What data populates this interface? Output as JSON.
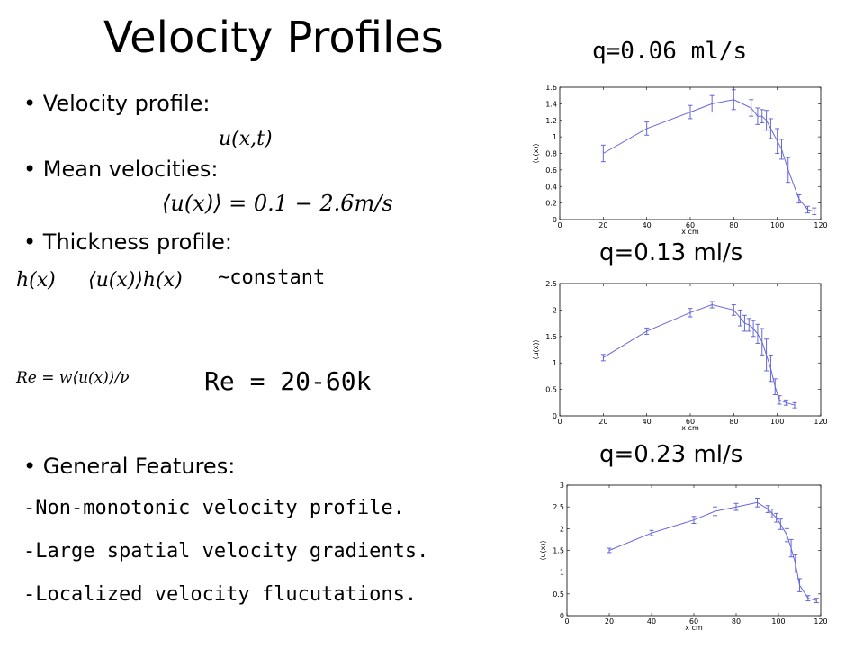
{
  "slide": {
    "title": "Velocity Profiles",
    "bullets": {
      "velocity_profile": "• Velocity profile:",
      "velocity_profile_eq": "u(x,t)",
      "mean_velocities": "• Mean velocities:",
      "mean_velocities_eq": "⟨u(x)⟩ = 0.1 − 2.6m/s",
      "thickness_profile": "• Thickness profile:",
      "thickness_eq_left": "h(x)",
      "thickness_eq_right": "⟨u(x)⟩h(x)",
      "thickness_constant": "~constant",
      "reynolds_eq": "Re = w⟨u(x)⟩/ν",
      "reynolds_value": "Re = 20-60k",
      "general_features": "• General Features:",
      "features": [
        "-Non-monotonic velocity profile.",
        "-Large spatial velocity gradients.",
        "-Localized velocity flucutations."
      ]
    }
  },
  "chart_data": [
    {
      "type": "line",
      "title": "q=0.06 ml/s",
      "xlabel": "x cm",
      "ylabel": "⟨u(x)⟩",
      "xlim": [
        0,
        120
      ],
      "ylim": [
        0,
        1.6
      ],
      "xticks": [
        "0",
        "20",
        "40",
        "60",
        "80",
        "100",
        "120"
      ],
      "yticks": [
        "0",
        "0.2",
        "0.4",
        "0.6",
        "0.8",
        "1",
        "1.2",
        "1.4",
        "1.6"
      ],
      "color": "#6666dd",
      "x": [
        20,
        40,
        60,
        70,
        80,
        88,
        91,
        93,
        95,
        97,
        100,
        102,
        105,
        110,
        114,
        117
      ],
      "y": [
        0.8,
        1.1,
        1.3,
        1.4,
        1.45,
        1.35,
        1.25,
        1.25,
        1.2,
        1.1,
        0.95,
        0.85,
        0.6,
        0.25,
        0.12,
        0.1
      ],
      "err": [
        0.1,
        0.08,
        0.08,
        0.1,
        0.12,
        0.1,
        0.1,
        0.08,
        0.12,
        0.12,
        0.15,
        0.12,
        0.15,
        0.05,
        0.04,
        0.04
      ]
    },
    {
      "type": "line",
      "title": "q=0.13 ml/s",
      "xlabel": "x cm",
      "ylabel": "⟨u(x)⟩",
      "xlim": [
        0,
        120
      ],
      "ylim": [
        0,
        2.5
      ],
      "xticks": [
        "0",
        "20",
        "40",
        "60",
        "80",
        "100",
        "120"
      ],
      "yticks": [
        "0",
        "0.5",
        "1",
        "1.5",
        "2",
        "2.5"
      ],
      "color": "#6666dd",
      "x": [
        20,
        40,
        60,
        70,
        80,
        83,
        85,
        87,
        89,
        91,
        93,
        95,
        97,
        99,
        101,
        104,
        108
      ],
      "y": [
        1.1,
        1.6,
        1.95,
        2.1,
        2.0,
        1.85,
        1.75,
        1.72,
        1.65,
        1.55,
        1.4,
        1.15,
        0.9,
        0.55,
        0.3,
        0.25,
        0.2
      ],
      "err": [
        0.06,
        0.06,
        0.08,
        0.06,
        0.1,
        0.15,
        0.15,
        0.12,
        0.15,
        0.18,
        0.25,
        0.3,
        0.25,
        0.15,
        0.08,
        0.05,
        0.05
      ]
    },
    {
      "type": "line",
      "title": "q=0.23 ml/s",
      "xlabel": "x cm",
      "ylabel": "⟨u(x)⟩",
      "xlim": [
        0,
        120
      ],
      "ylim": [
        0,
        3
      ],
      "xticks": [
        "0",
        "20",
        "40",
        "60",
        "80",
        "100",
        "120"
      ],
      "yticks": [
        "0",
        "0.5",
        "1",
        "1.5",
        "2",
        "2.5",
        "3"
      ],
      "color": "#6666dd",
      "x": [
        20,
        40,
        60,
        70,
        80,
        90,
        95,
        97,
        99,
        101,
        104,
        106,
        108,
        110,
        114,
        118
      ],
      "y": [
        1.5,
        1.9,
        2.2,
        2.4,
        2.5,
        2.6,
        2.45,
        2.35,
        2.25,
        2.1,
        1.85,
        1.55,
        1.2,
        0.7,
        0.4,
        0.35
      ],
      "err": [
        0.05,
        0.06,
        0.08,
        0.1,
        0.08,
        0.1,
        0.08,
        0.1,
        0.1,
        0.12,
        0.15,
        0.2,
        0.2,
        0.15,
        0.06,
        0.05
      ]
    }
  ]
}
